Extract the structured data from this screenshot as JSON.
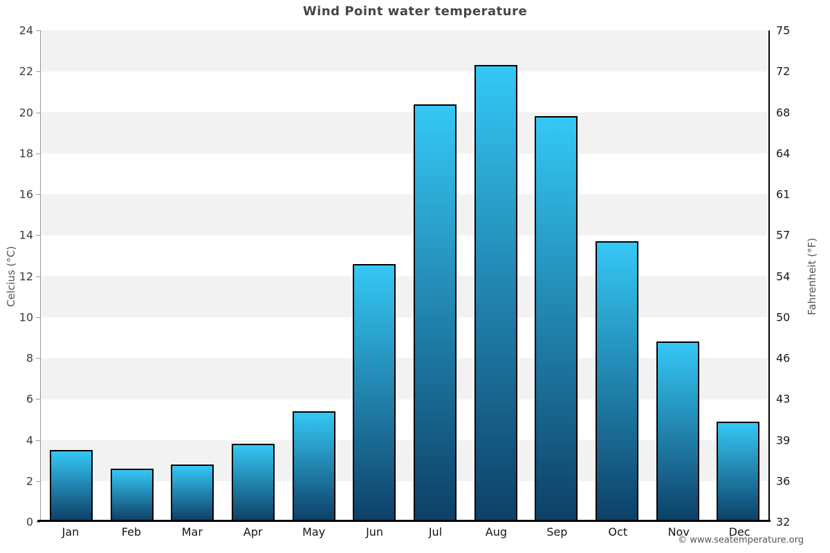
{
  "page": {
    "title": "Wind Point water temperature",
    "footer": "© www.seatemperature.org"
  },
  "chart_data": {
    "type": "bar",
    "title": "Wind Point water temperature",
    "categories": [
      "Jan",
      "Feb",
      "Mar",
      "Apr",
      "May",
      "Jun",
      "Jul",
      "Aug",
      "Sep",
      "Oct",
      "Nov",
      "Dec"
    ],
    "values": [
      3.5,
      2.6,
      2.8,
      3.8,
      5.4,
      12.6,
      20.4,
      22.3,
      19.8,
      13.7,
      8.8,
      4.9
    ],
    "unit": "°C",
    "ylabel_left": "Celcius (°C)",
    "ylabel_right": "Fahrenheit (°F)",
    "ylim_celsius": [
      0,
      24
    ],
    "celsius_ticks": [
      24,
      22,
      20,
      18,
      16,
      14,
      12,
      10,
      8,
      6,
      4,
      2,
      0
    ],
    "fahrenheit_ticks": [
      75,
      72,
      68,
      64,
      61,
      57,
      54,
      50,
      46,
      43,
      39,
      36,
      32
    ],
    "grid": "alternating-horizontal-bands",
    "legend": "none",
    "colors": {
      "bar_top": "#35c8f5",
      "bar_bottom": "#0d4067",
      "bar_border": "#000000",
      "band_gray": "#f2f2f2",
      "band_white": "#ffffff",
      "axis_line_left": "#999999",
      "axis_line_right": "#000000",
      "baseline": "#000000"
    }
  }
}
